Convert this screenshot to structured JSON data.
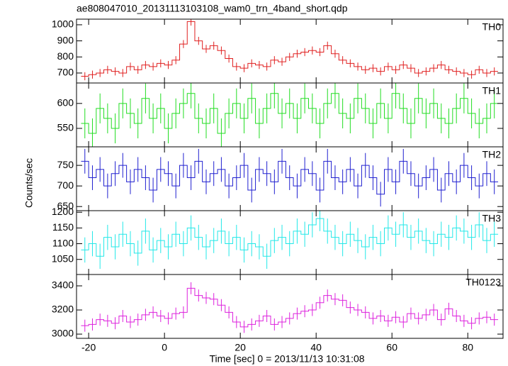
{
  "chart_data": {
    "type": "step",
    "title": "ae808047010_20131113103108_wam0_trn_4band_short.qdp",
    "xlabel": "Time [sec] 0 = 2013/11/13 10:31:08",
    "ylabel": "Counts/sec",
    "xlim": [
      -23.2,
      89.3
    ],
    "xticks": [
      -20,
      0,
      20,
      40,
      60,
      80
    ],
    "x": [
      -21,
      -19,
      -17,
      -15,
      -13,
      -11,
      -9,
      -7,
      -5,
      -3,
      -1,
      1,
      3,
      5,
      7,
      9,
      11,
      13,
      15,
      17,
      19,
      21,
      23,
      25,
      27,
      29,
      31,
      33,
      35,
      37,
      39,
      41,
      43,
      45,
      47,
      49,
      51,
      53,
      55,
      57,
      59,
      61,
      63,
      65,
      67,
      69,
      71,
      73,
      75,
      77,
      79,
      81,
      83,
      85,
      87
    ],
    "panels": [
      {
        "name": "TH0",
        "color": "#e02020",
        "error": 25,
        "ylim": [
          638,
          1035
        ],
        "yticks": [
          700,
          800,
          900,
          1000
        ],
        "values": [
          680,
          690,
          700,
          720,
          710,
          700,
          740,
          720,
          750,
          740,
          760,
          750,
          780,
          880,
          1020,
          900,
          850,
          870,
          840,
          790,
          740,
          730,
          760,
          750,
          740,
          780,
          770,
          800,
          820,
          830,
          840,
          830,
          870,
          820,
          780,
          760,
          740,
          720,
          730,
          710,
          740,
          720,
          750,
          730,
          700,
          710,
          730,
          750,
          720,
          710,
          700,
          690,
          720,
          700,
          710
        ]
      },
      {
        "name": "TH1",
        "color": "#22dd22",
        "error": 30,
        "ylim": [
          513,
          641
        ],
        "yticks": [
          550,
          600
        ],
        "values": [
          560,
          540,
          590,
          570,
          550,
          600,
          580,
          560,
          610,
          570,
          590,
          550,
          580,
          600,
          620,
          570,
          560,
          590,
          540,
          580,
          600,
          570,
          610,
          560,
          590,
          620,
          580,
          600,
          570,
          610,
          590,
          560,
          600,
          620,
          580,
          570,
          610,
          590,
          560,
          600,
          570,
          620,
          590,
          560,
          610,
          580,
          600,
          570,
          560,
          590,
          610,
          580,
          560,
          570,
          600
        ]
      },
      {
        "name": "TH2",
        "color": "#2020d0",
        "error": 30,
        "ylim": [
          640,
          795
        ],
        "yticks": [
          650,
          700,
          750
        ],
        "values": [
          760,
          720,
          740,
          700,
          730,
          750,
          710,
          740,
          720,
          690,
          740,
          730,
          700,
          750,
          720,
          760,
          710,
          730,
          740,
          700,
          720,
          750,
          690,
          740,
          730,
          710,
          760,
          720,
          700,
          740,
          730,
          690,
          760,
          720,
          710,
          740,
          700,
          750,
          720,
          680,
          740,
          710,
          760,
          730,
          700,
          720,
          740,
          690,
          730,
          710,
          750,
          720,
          700,
          730,
          710
        ]
      },
      {
        "name": "TH3",
        "color": "#22e8e8",
        "error": 40,
        "ylim": [
          1002,
          1205
        ],
        "yticks": [
          1050,
          1100,
          1150,
          1200
        ],
        "values": [
          1080,
          1100,
          1060,
          1120,
          1090,
          1130,
          1100,
          1070,
          1140,
          1080,
          1110,
          1090,
          1130,
          1100,
          1150,
          1120,
          1090,
          1110,
          1140,
          1100,
          1120,
          1080,
          1100,
          1090,
          1060,
          1110,
          1120,
          1100,
          1140,
          1130,
          1160,
          1180,
          1140,
          1120,
          1100,
          1130,
          1110,
          1090,
          1120,
          1100,
          1150,
          1130,
          1160,
          1120,
          1140,
          1110,
          1100,
          1130,
          1120,
          1150,
          1140,
          1120,
          1160,
          1110,
          1130
        ]
      },
      {
        "name": "TH0123",
        "color": "#dd22dd",
        "error": 50,
        "ylim": [
          2965,
          3494
        ],
        "yticks": [
          3000,
          3200,
          3400
        ],
        "values": [
          3070,
          3080,
          3120,
          3110,
          3090,
          3150,
          3100,
          3120,
          3160,
          3180,
          3150,
          3130,
          3170,
          3180,
          3380,
          3320,
          3300,
          3290,
          3240,
          3180,
          3100,
          3060,
          3080,
          3110,
          3150,
          3080,
          3100,
          3130,
          3170,
          3190,
          3200,
          3260,
          3320,
          3290,
          3280,
          3220,
          3200,
          3180,
          3130,
          3150,
          3110,
          3140,
          3100,
          3170,
          3130,
          3160,
          3200,
          3120,
          3210,
          3150,
          3110,
          3090,
          3130,
          3140,
          3120
        ]
      }
    ]
  }
}
